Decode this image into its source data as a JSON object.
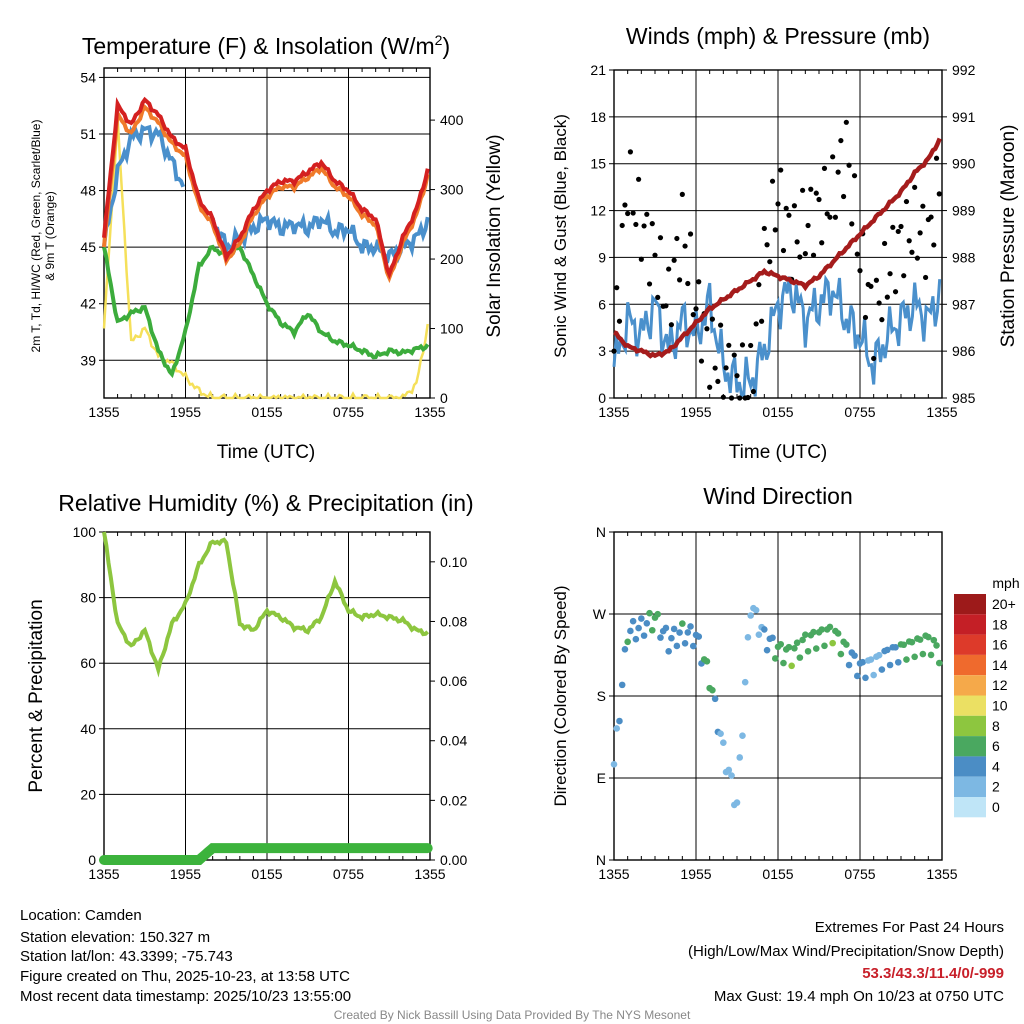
{
  "colors": {
    "temp": "#d42020",
    "temp_orange": "#f07a2a",
    "dewpoint": "#3cac3c",
    "wind_blue": "#4a90cc",
    "insolation": "#f5e05a",
    "gust": "#000000",
    "pressure": "#a51c1c",
    "rh": "#8dc63f",
    "precip": "#3cb33c",
    "extremes": "#c8202a",
    "credit": "#888888"
  },
  "x_ticks": [
    "1355",
    "1955",
    "0155",
    "0755",
    "1355"
  ],
  "chart_data": [
    {
      "type": "line",
      "title": "Temperature (F) & Insolation (W/m²)",
      "title_main": "Temperature (F) & Insolation (W/m",
      "title_sup": "2",
      "title_end": ")",
      "xlabel": "Time (UTC)",
      "ylabel_left_line1": "2m T, Td, HI/WC (Red, Green, Scarlet/Blue)",
      "ylabel_left_line2": "& 9m T (Orange)",
      "ylabel_right": "Solar Insolation (Yellow)",
      "ylim_left": [
        37,
        54.5
      ],
      "yticks_left": [
        "39",
        "42",
        "45",
        "48",
        "51",
        "54"
      ],
      "ylim_right": [
        0,
        475
      ],
      "yticks_right": [
        "0",
        "100",
        "200",
        "300",
        "400"
      ],
      "x_hours": [
        0,
        1,
        2,
        3,
        4,
        5,
        6,
        7,
        8,
        9,
        10,
        11,
        12,
        13,
        14,
        15,
        16,
        17,
        18,
        19,
        20,
        21,
        22,
        23,
        24
      ],
      "series": [
        {
          "name": "Temperature",
          "values": [
            45.5,
            52.5,
            51.5,
            52.8,
            52.0,
            50.8,
            50.2,
            47.5,
            46.5,
            44.5,
            45.5,
            47.0,
            48.0,
            48.5,
            48.5,
            49.0,
            49.5,
            48.5,
            48.0,
            47.0,
            46.5,
            43.5,
            45.5,
            47.0,
            49.5
          ]
        },
        {
          "name": "9m Temperature",
          "values": [
            45.0,
            52.0,
            51.0,
            52.4,
            51.6,
            50.5,
            49.8,
            47.2,
            46.2,
            44.3,
            45.2,
            46.7,
            47.7,
            48.2,
            48.2,
            48.7,
            49.2,
            48.2,
            47.7,
            46.7,
            46.2,
            43.3,
            45.2,
            46.7,
            49.2
          ]
        },
        {
          "name": "Dewpoint",
          "values": [
            45.0,
            41.0,
            41.5,
            41.8,
            39.5,
            38.2,
            40.5,
            44.0,
            45.0,
            44.5,
            45.0,
            43.5,
            42.0,
            41.0,
            40.5,
            41.5,
            40.5,
            40.0,
            39.8,
            39.5,
            39.2,
            39.5,
            39.4,
            39.6,
            39.8
          ]
        },
        {
          "name": "Wind Chill",
          "values": [
            45.0,
            49.0,
            50.8,
            51.2,
            51.0,
            49.5,
            48.0,
            null,
            46.5,
            45.0,
            45.5,
            46.0,
            46.5,
            46.0,
            46.2,
            46.0,
            46.5,
            45.8,
            46.0,
            45.0,
            45.0,
            44.5,
            45.0,
            45.5,
            46.5
          ]
        },
        {
          "name": "Solar Insolation",
          "axis": "right",
          "values": [
            100,
            400,
            80,
            100,
            60,
            50,
            30,
            10,
            0,
            0,
            0,
            0,
            0,
            0,
            0,
            0,
            0,
            0,
            0,
            0,
            0,
            0,
            0,
            20,
            120
          ]
        }
      ]
    },
    {
      "type": "scatter",
      "title": "Winds (mph) & Pressure (mb)",
      "xlabel": "Time (UTC)",
      "ylabel_left": "Sonic Wind & Gust (Blue, Black)",
      "ylabel_right": "Station Pressure (Maroon)",
      "ylim_left": [
        0,
        21
      ],
      "yticks_left": [
        "0",
        "3",
        "6",
        "9",
        "12",
        "15",
        "18",
        "21"
      ],
      "ylim_right": [
        985,
        992
      ],
      "yticks_right": [
        "985",
        "986",
        "987",
        "988",
        "989",
        "990",
        "991",
        "992"
      ],
      "x_hours": [
        0,
        1,
        2,
        3,
        4,
        5,
        6,
        7,
        8,
        9,
        10,
        11,
        12,
        13,
        14,
        15,
        16,
        17,
        18,
        19,
        20,
        21,
        22,
        23,
        24
      ],
      "series": [
        {
          "name": "Sonic Wind",
          "values": [
            2,
            5,
            4,
            6,
            3,
            5,
            4,
            6,
            2,
            1,
            1,
            3,
            6,
            7,
            5,
            6,
            7,
            5,
            4,
            2,
            4,
            5,
            6,
            5,
            7
          ]
        },
        {
          "name": "Gust",
          "values": [
            3,
            14,
            11,
            9,
            6,
            11,
            6,
            3,
            2,
            1,
            1,
            9,
            13,
            10,
            11,
            12,
            13,
            16,
            9,
            5,
            8,
            10,
            11,
            10,
            15
          ]
        },
        {
          "name": "Pressure",
          "axis": "right",
          "values": [
            986.4,
            986.1,
            986.0,
            985.9,
            986.0,
            986.3,
            986.6,
            986.9,
            987.1,
            987.3,
            987.5,
            987.7,
            987.6,
            987.5,
            987.4,
            987.6,
            987.9,
            988.2,
            988.5,
            988.8,
            989.1,
            989.4,
            989.8,
            990.1,
            990.6
          ]
        }
      ]
    },
    {
      "type": "line",
      "title": "Relative Humidity (%) & Precipitation (in)",
      "ylabel_left": "Percent & Precipitation",
      "ylim_left": [
        0,
        100
      ],
      "yticks_left": [
        "0",
        "20",
        "40",
        "60",
        "80",
        "100"
      ],
      "ylim_right": [
        0,
        0.11
      ],
      "yticks_right": [
        "0.00",
        "0.02",
        "0.04",
        "0.06",
        "0.08",
        "0.10"
      ],
      "x_hours": [
        0,
        1,
        2,
        3,
        4,
        5,
        6,
        7,
        8,
        9,
        10,
        11,
        12,
        13,
        14,
        15,
        16,
        17,
        18,
        19,
        20,
        21,
        22,
        23,
        24
      ],
      "series": [
        {
          "name": "Relative Humidity",
          "values": [
            100,
            72,
            65,
            70,
            58,
            72,
            78,
            90,
            97,
            97,
            72,
            70,
            76,
            74,
            71,
            70,
            74,
            85,
            76,
            74,
            75,
            74,
            73,
            70,
            69
          ]
        },
        {
          "name": "Precipitation",
          "axis": "right",
          "values": [
            0,
            0,
            0,
            0,
            0,
            0,
            0,
            0,
            0.004,
            0.004,
            0.004,
            0.004,
            0.004,
            0.004,
            0.004,
            0.004,
            0.004,
            0.004,
            0.004,
            0.004,
            0.004,
            0.004,
            0.004,
            0.004,
            0.004
          ]
        }
      ]
    },
    {
      "type": "scatter",
      "title": "Wind Direction",
      "ylabel_left": "Direction (Colored By Speed)",
      "yticks_left": [
        "N",
        "E",
        "S",
        "W",
        "N"
      ],
      "ylim_left": [
        0,
        360
      ],
      "x_hours": [
        0,
        1,
        2,
        3,
        4,
        5,
        6,
        7,
        8,
        9,
        10,
        11,
        12,
        13,
        14,
        15,
        16,
        17,
        18,
        19,
        20,
        21,
        22,
        23,
        24
      ],
      "series": [
        {
          "name": "Direction",
          "values": [
            105,
            250,
            255,
            265,
            240,
            250,
            245,
            200,
            120,
            60,
            280,
            245,
            230,
            225,
            240,
            245,
            250,
            230,
            210,
            215,
            225,
            230,
            235,
            240,
            225
          ]
        },
        {
          "name": "Speed",
          "values": [
            2,
            5,
            4,
            6,
            3,
            5,
            4,
            6,
            2,
            1,
            1,
            3,
            6,
            7,
            5,
            6,
            7,
            5,
            4,
            2,
            4,
            5,
            6,
            5,
            7
          ]
        }
      ],
      "legend_title": "mph",
      "legend_labels": [
        "20+",
        "18",
        "16",
        "14",
        "12",
        "10",
        "8",
        "6",
        "4",
        "2",
        "0"
      ],
      "legend_colors": [
        "#9d1a1a",
        "#c41f26",
        "#dd3a2a",
        "#ef6a2d",
        "#f5a94a",
        "#ebe063",
        "#8dc63f",
        "#4aa860",
        "#4b8dc5",
        "#7db8e3",
        "#bfe5f7"
      ]
    }
  ],
  "footer": {
    "location": "Location: Camden",
    "elevation": "Station elevation: 150.327 m",
    "latlon": "Station lat/lon: 43.3399; -75.743",
    "created": "Figure created on Thu, 2025-10-23, at 13:58 UTC",
    "recent": "Most recent data timestamp: 2025/10/23 13:55:00",
    "extremes_title": "Extremes For Past 24 Hours",
    "extremes_subtitle": "(High/Low/Max Wind/Precipitation/Snow Depth)",
    "extremes_values": "53.3/43.3/11.4/0/-999",
    "max_gust": "Max Gust: 19.4 mph On 10/23 at 0750 UTC",
    "credit": "Created By Nick Bassill Using Data Provided By The NYS Mesonet"
  }
}
